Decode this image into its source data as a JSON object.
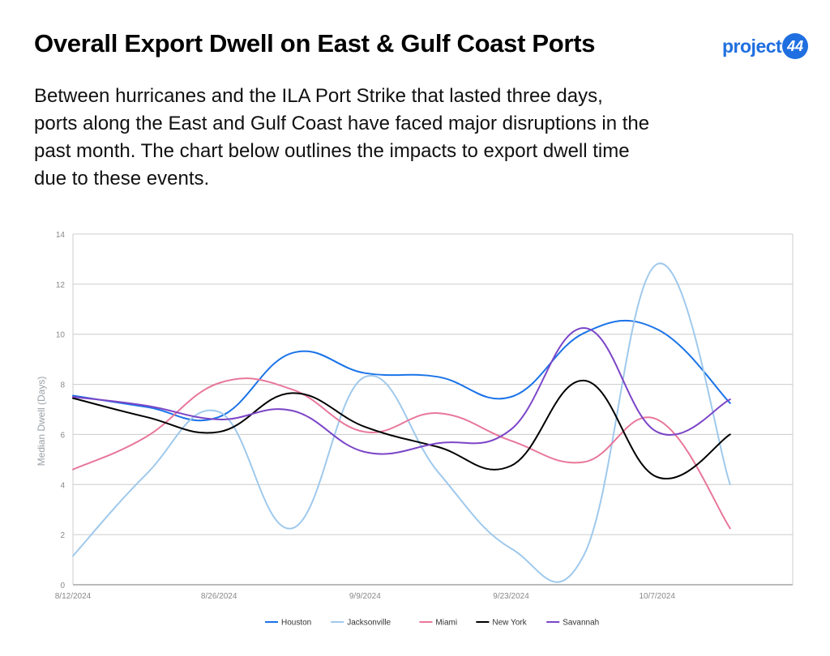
{
  "header": {
    "title": "Overall Export Dwell on East & Gulf Coast Ports",
    "subtitle": "Between hurricanes and the ILA Port Strike that lasted three days, ports along the East and Gulf Coast have faced major disruptions in the past month. The chart below outlines the impacts to export dwell time due to these events.",
    "logo_text": "project",
    "logo_badge": "44",
    "logo_color": "#1f6fe0"
  },
  "chart_data": {
    "type": "line",
    "title": "",
    "xlabel": "",
    "ylabel": "Median Dwell (Days)",
    "ylim": [
      0,
      14
    ],
    "yticks": [
      0,
      2,
      4,
      6,
      8,
      10,
      12,
      14
    ],
    "x": [
      "2024-08-12",
      "2024-08-19",
      "2024-08-26",
      "2024-09-02",
      "2024-09-09",
      "2024-09-16",
      "2024-09-23",
      "2024-09-30",
      "2024-10-07",
      "2024-10-14"
    ],
    "xtick_labels": [
      "8/12/2024",
      "8/26/2024",
      "9/9/2024",
      "9/23/2024",
      "10/7/2024"
    ],
    "xtick_dates": [
      "2024-08-12",
      "2024-08-26",
      "2024-09-09",
      "2024-09-23",
      "2024-10-07"
    ],
    "x_end_date": "2024-10-20",
    "grid": true,
    "legend_position": "bottom-center",
    "series": [
      {
        "name": "Houston",
        "color": "#1a73e8",
        "values": [
          7.55,
          7.1,
          6.7,
          9.25,
          8.45,
          8.3,
          7.5,
          10.05,
          10.2,
          7.25
        ]
      },
      {
        "name": "Jacksonville",
        "color": "#9fc9ec",
        "values": [
          1.15,
          4.4,
          6.9,
          2.25,
          8.3,
          4.5,
          1.45,
          1.2,
          12.8,
          4.0
        ]
      },
      {
        "name": "Miami",
        "color": "#e8779a",
        "values": [
          4.6,
          5.9,
          8.05,
          7.8,
          6.1,
          6.85,
          5.75,
          4.9,
          6.6,
          2.25
        ]
      },
      {
        "name": "New York",
        "color": "#000000",
        "values": [
          7.45,
          6.7,
          6.1,
          7.65,
          6.3,
          5.5,
          4.75,
          8.15,
          4.3,
          6.0
        ]
      },
      {
        "name": "Savannah",
        "color": "#7b45c7",
        "values": [
          7.5,
          7.15,
          6.6,
          6.95,
          5.3,
          5.65,
          6.2,
          10.25,
          6.1,
          7.4
        ]
      }
    ]
  }
}
